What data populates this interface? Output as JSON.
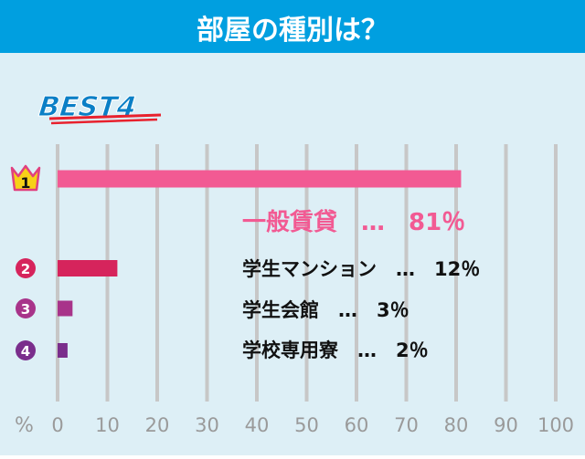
{
  "header": {
    "title": "部屋の種別は？"
  },
  "badge": {
    "label": "BEST4"
  },
  "colors": {
    "header_bg": "#009fe0",
    "panel_bg": "#ddeff6",
    "grid": "#c7c7c7",
    "axis_text": "#9a9a9a",
    "underline": "#e8212d"
  },
  "chart_data": {
    "type": "bar",
    "orientation": "horizontal",
    "title": "部屋の種別は？",
    "xlabel": "%",
    "xlim": [
      0,
      100
    ],
    "ticks": [
      "0",
      "10",
      "20",
      "30",
      "40",
      "50",
      "60",
      "70",
      "80",
      "90",
      "100"
    ],
    "grid": true,
    "categories": [
      "一般賃貸",
      "学生マンション",
      "学生会館",
      "学校専用寮"
    ],
    "values": [
      81,
      12,
      3,
      2
    ],
    "ranks": [
      "1",
      "2",
      "3",
      "4"
    ],
    "labels": [
      "一般賃貸　…　81％",
      "学生マンション　…　12％",
      "学生会館　…　3％",
      "学校専用寮　…　2％"
    ],
    "bar_colors": [
      "#f25a93",
      "#d6245c",
      "#a8348a",
      "#7a2e8c"
    ],
    "label_colors": [
      "#f25a93",
      "#111111",
      "#111111",
      "#111111"
    ],
    "rank_icons": [
      "crown-icon",
      "rank-circle-icon",
      "rank-circle-icon",
      "rank-circle-icon"
    ]
  }
}
